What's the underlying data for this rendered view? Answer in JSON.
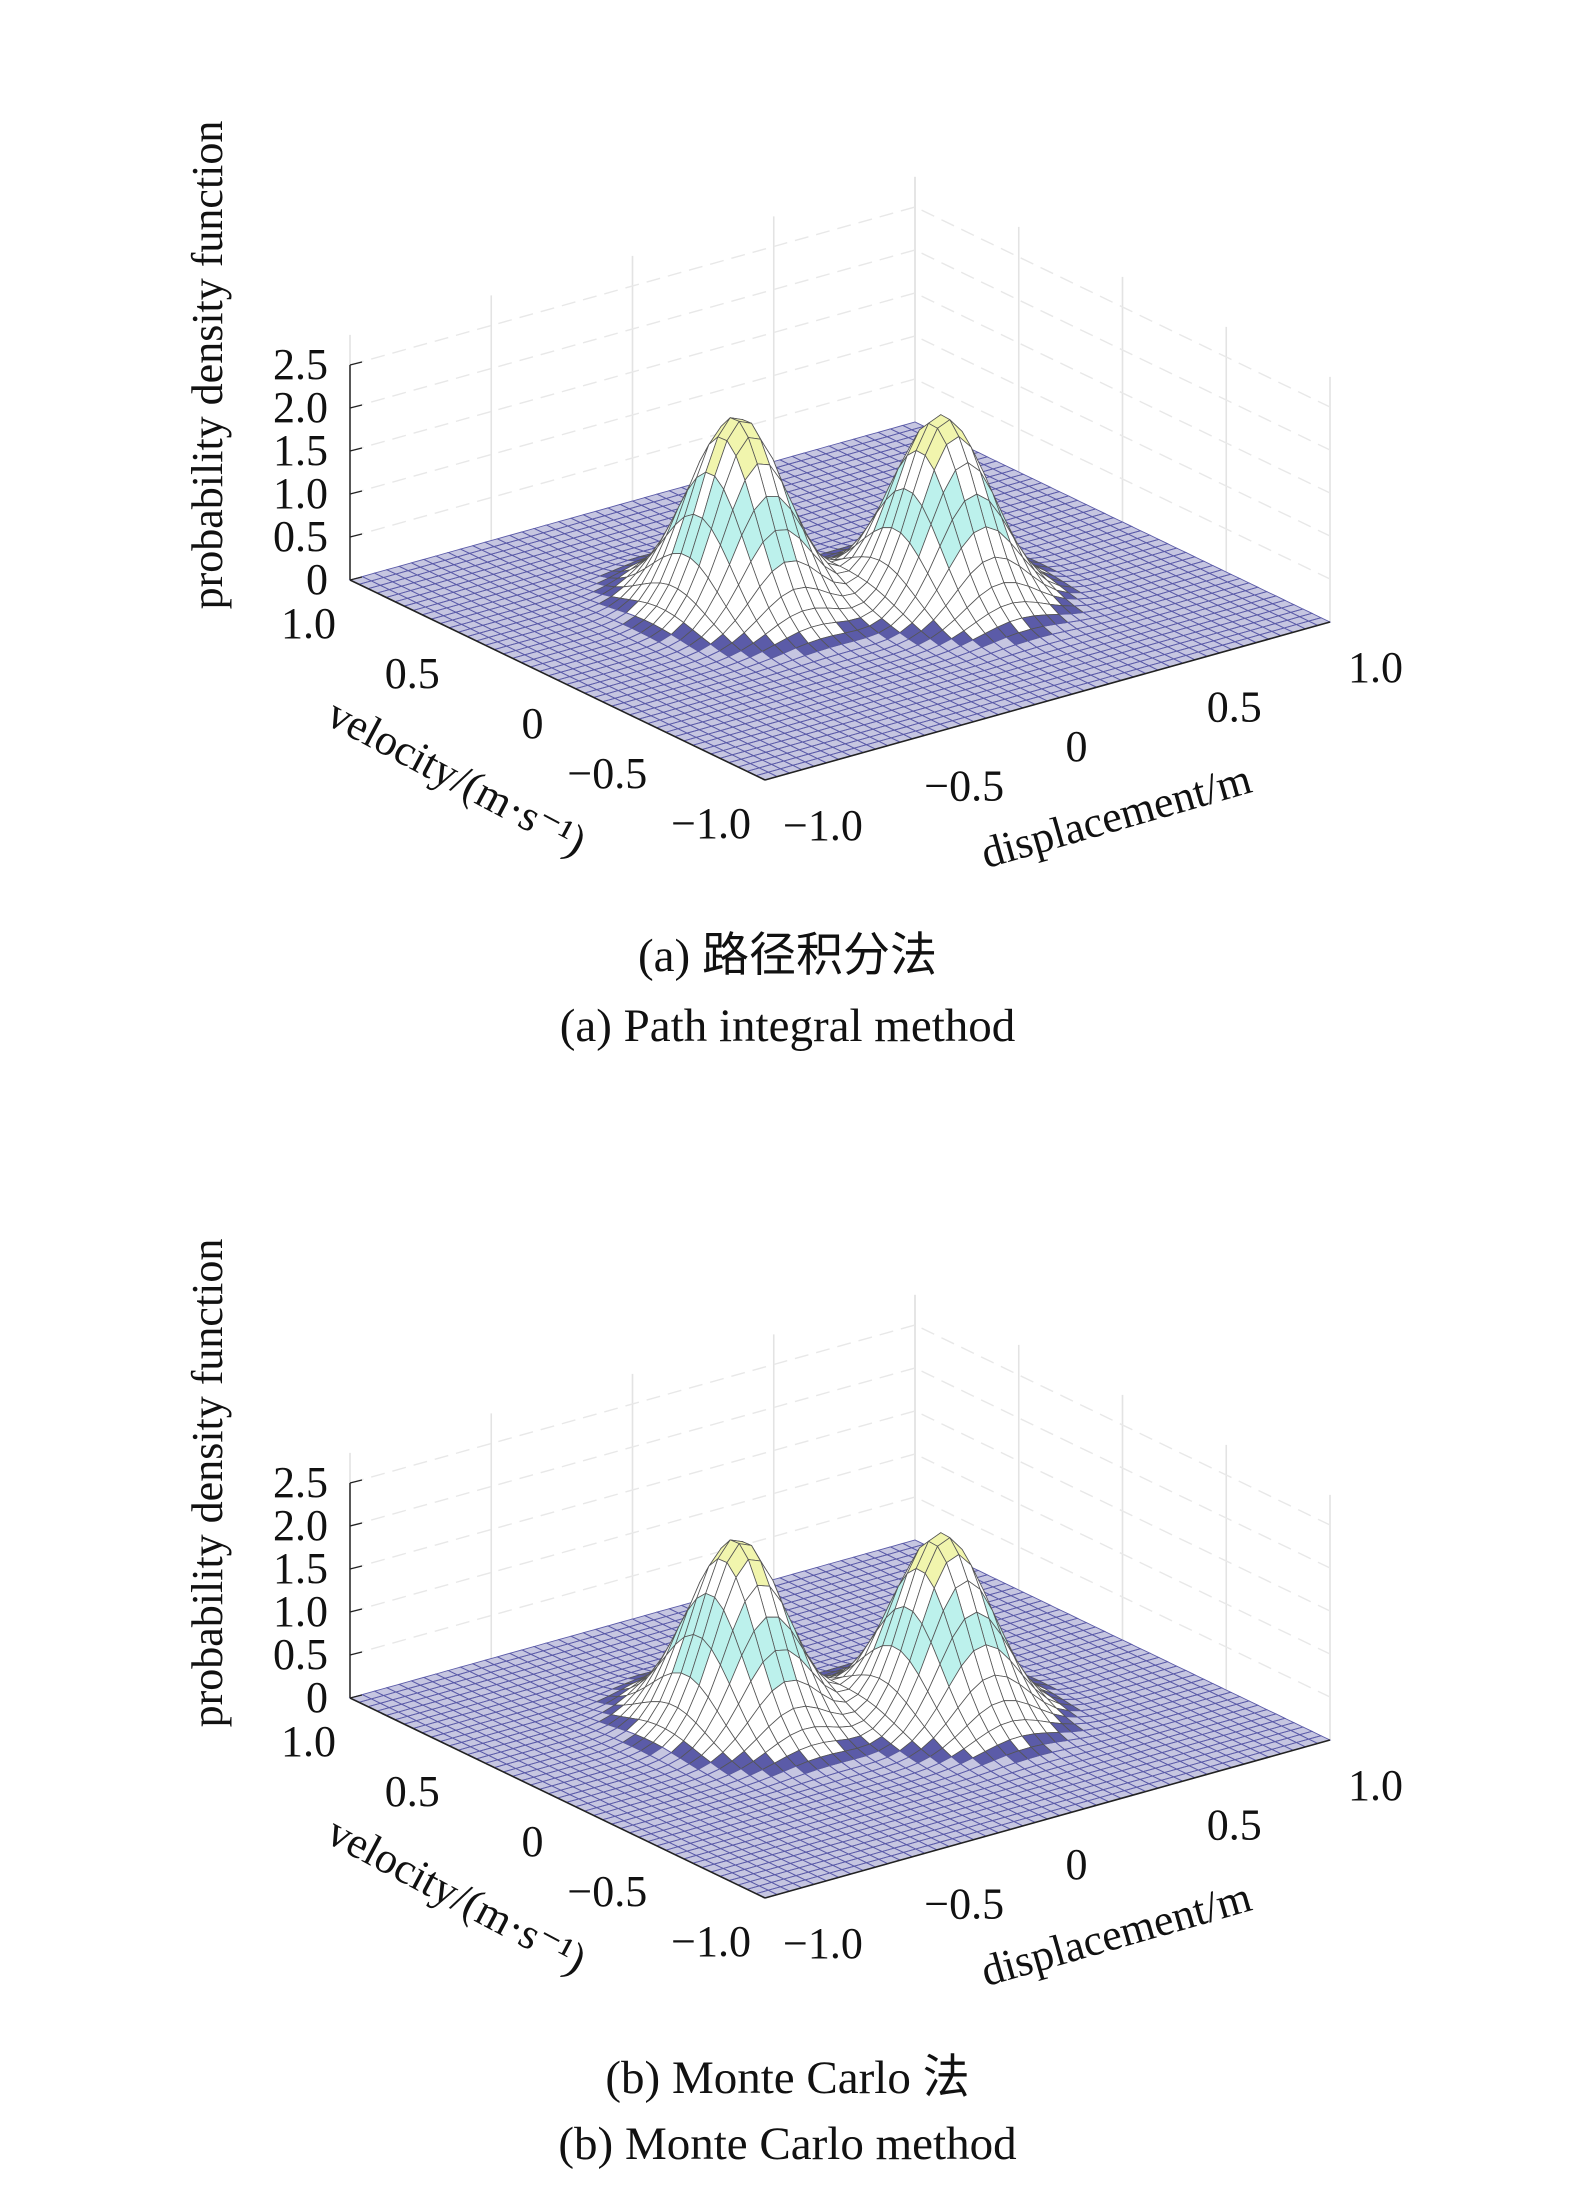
{
  "chart_data": [
    {
      "type": "surface",
      "id": "a",
      "caption_cn": "(a) 路径积分法",
      "caption_en": "(a) Path integral method",
      "zlabel": "probability density function",
      "xlabel": "displacement/m",
      "ylabel": "velocity/(m·s⁻¹)",
      "xlim": [
        -1.0,
        1.0
      ],
      "ylim": [
        -1.0,
        1.0
      ],
      "zlim": [
        0,
        2.5
      ],
      "xticks": [
        "−1.0",
        "−0.5",
        "0",
        "0.5",
        "1.0"
      ],
      "yticks": [
        "−1.0",
        "−0.5",
        "0",
        "0.5",
        "1.0"
      ],
      "zticks": [
        "0",
        "0.5",
        "1.0",
        "1.5",
        "2.0",
        "2.5"
      ],
      "grid": true,
      "peaks": [
        {
          "x": -0.25,
          "y": 0.15,
          "z": 2.2
        },
        {
          "x": 0.25,
          "y": -0.15,
          "z": 2.1
        }
      ],
      "saddle_z": 1.1,
      "colors": {
        "low": "#5b5ba8",
        "mid": "#3fd7c8",
        "high": "#e6ec6a",
        "mesh": "#555555"
      }
    },
    {
      "type": "surface",
      "id": "b",
      "caption_cn": "(b) Monte Carlo 法",
      "caption_en": "(b) Monte Carlo method",
      "zlabel": "probability density function",
      "xlabel": "displacement/m",
      "ylabel": "velocity/(m·s⁻¹)",
      "xlim": [
        -1.0,
        1.0
      ],
      "ylim": [
        -1.0,
        1.0
      ],
      "zlim": [
        0,
        2.5
      ],
      "xticks": [
        "−1.0",
        "−0.5",
        "0",
        "0.5",
        "1.0"
      ],
      "yticks": [
        "−1.0",
        "−0.5",
        "0",
        "0.5",
        "1.0"
      ],
      "zticks": [
        "0",
        "0.5",
        "1.0",
        "1.5",
        "2.0",
        "2.5"
      ],
      "grid": true,
      "peaks": [
        {
          "x": -0.25,
          "y": 0.15,
          "z": 2.15
        },
        {
          "x": 0.25,
          "y": -0.15,
          "z": 2.1
        }
      ],
      "saddle_z": 1.1,
      "colors": {
        "low": "#5b5ba8",
        "mid": "#3fd7c8",
        "high": "#e6ec6a",
        "mesh": "#555555"
      }
    }
  ]
}
